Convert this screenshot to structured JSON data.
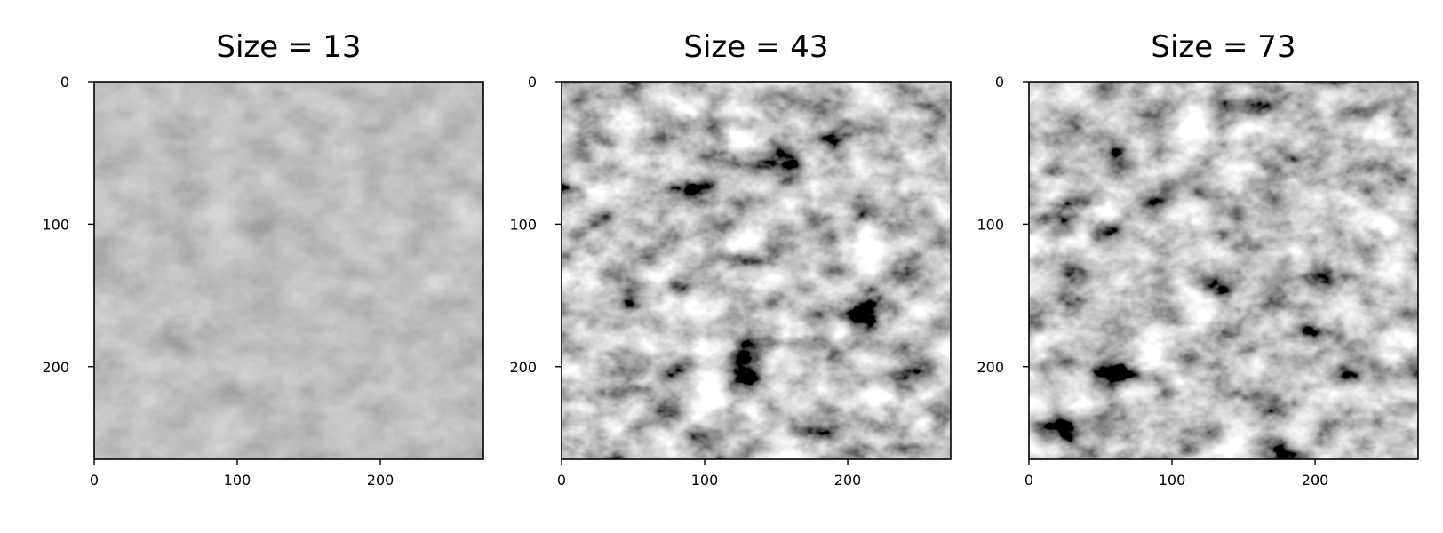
{
  "chart_data": [
    {
      "type": "heatmap",
      "title": "Size = 13",
      "colormap": "gray",
      "xlim": [
        0,
        272
      ],
      "ylim": [
        265,
        0
      ],
      "xticks": [
        0,
        100,
        200
      ],
      "yticks": [
        0,
        100,
        200
      ],
      "contrast": "low"
    },
    {
      "type": "heatmap",
      "title": "Size = 43",
      "colormap": "gray",
      "xlim": [
        0,
        272
      ],
      "ylim": [
        265,
        0
      ],
      "xticks": [
        0,
        100,
        200
      ],
      "yticks": [
        0,
        100,
        200
      ],
      "contrast": "high"
    },
    {
      "type": "heatmap",
      "title": "Size = 73",
      "colormap": "gray",
      "xlim": [
        0,
        272
      ],
      "ylim": [
        265,
        0
      ],
      "xticks": [
        0,
        100,
        200
      ],
      "yticks": [
        0,
        100,
        200
      ],
      "contrast": "high"
    }
  ]
}
